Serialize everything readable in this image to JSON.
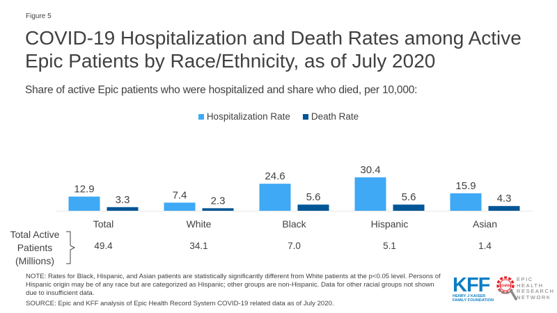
{
  "figure_label": "Figure 5",
  "title": "COVID-19 Hospitalization and Death Rates among Active Epic Patients by Race/Ethnicity, as of July 2020",
  "subtitle": "Share of active Epic patients who were hospitalized and share who died, per 10,000:",
  "chart_data": {
    "type": "bar",
    "title": "COVID-19 Hospitalization and Death Rates among Active Epic Patients by Race/Ethnicity, as of July 2020",
    "subtitle": "Share of active Epic patients who were hospitalized and share who died, per 10,000:",
    "categories": [
      "Total",
      "White",
      "Black",
      "Hispanic",
      "Asian"
    ],
    "series": [
      {
        "name": "Hospitalization Rate",
        "color": "#3fa9f5",
        "values": [
          12.9,
          7.4,
          24.6,
          30.4,
          15.9
        ]
      },
      {
        "name": "Death Rate",
        "color": "#005696",
        "values": [
          3.3,
          2.3,
          5.6,
          5.6,
          4.3
        ]
      }
    ],
    "value_labels": [
      [
        "12.9",
        "7.4",
        "24.6",
        "30.4",
        "15.9"
      ],
      [
        "3.3",
        "2.3",
        "5.6",
        "5.6",
        "4.3"
      ]
    ],
    "xlabel": "",
    "ylabel": "",
    "ylim": [
      0,
      32
    ],
    "grid": false,
    "legend_position": "top-center"
  },
  "population": {
    "label_lines": [
      "Total Active",
      "Patients",
      "(Millions)"
    ],
    "values": [
      "49.4",
      "34.1",
      "7.0",
      "5.1",
      "1.4"
    ]
  },
  "note": "NOTE: Rates for Black, Hispanic, and Asian patients are statistically significantly different from White patients at the p<0.05 level. Persons of Hispanic origin may be of any race but are categorized as Hispanic; other groups are non-Hispanic. Data for other racial groups not shown due to insufficient data.",
  "source": "SOURCE: Epic and KFF analysis of Epic Health Record System COVID-19 related data as of July 2020.",
  "logos": {
    "kff_main": "KFF",
    "kff_sub_1": "HENRY J KAISER",
    "kff_sub_2": "FAMILY FOUNDATION",
    "ehrn_badge": "EHRN",
    "ehrn_lines": [
      "EPIC",
      "HEALTH",
      "RESEARCH",
      "NETWORK"
    ]
  }
}
